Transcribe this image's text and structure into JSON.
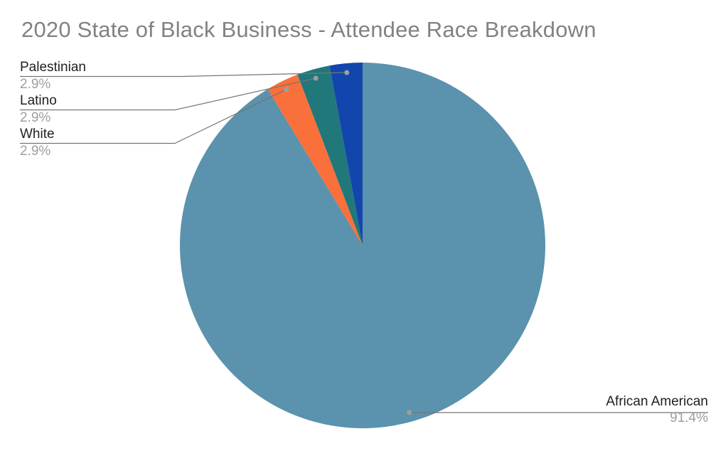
{
  "chart_data": {
    "type": "pie",
    "title": "2020 State of Black Business - Attendee Race Breakdown",
    "slices": [
      {
        "label": "African American",
        "value": 91.4,
        "pct_label": "91.4%",
        "color": "#5B92AD"
      },
      {
        "label": "White",
        "value": 2.9,
        "pct_label": "2.9%",
        "color": "#F9703A"
      },
      {
        "label": "Latino",
        "value": 2.9,
        "pct_label": "2.9%",
        "color": "#20787B"
      },
      {
        "label": "Palestinian",
        "value": 2.9,
        "pct_label": "2.9%",
        "color": "#1346AD"
      }
    ],
    "start_angle_deg": 0,
    "direction": "clockwise",
    "labels_style": "callouts with leader lines and dots",
    "legend_position": "none",
    "background_color": "#FFFFFF",
    "title_color": "#828282",
    "label_color": "#212121",
    "pct_color": "#9E9E9E",
    "leader_line_color": "#757575",
    "dot_color": "#9E9E9E"
  }
}
